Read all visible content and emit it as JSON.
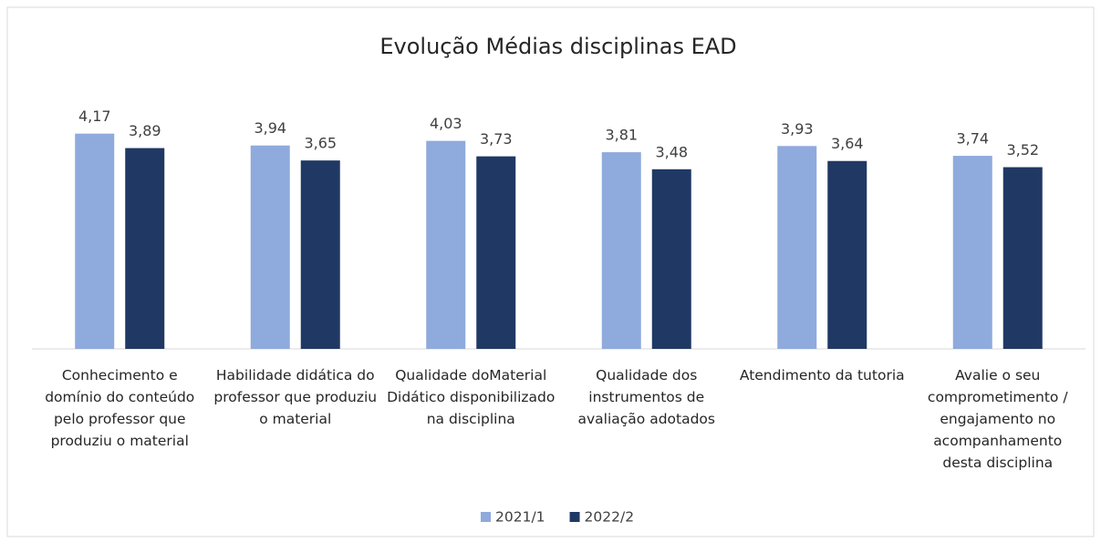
{
  "chart_data": {
    "type": "bar",
    "title": "Evolução Médias disciplinas EAD",
    "categories": [
      "Conhecimento e domínio do conteúdo pelo professor que produziu o material",
      "Habilidade didática do professor que produziu o material",
      "Qualidade doMaterial Didático disponibilizado na disciplina",
      "Qualidade dos instrumentos de avaliação adotados",
      "Atendimento da tutoria",
      "Avalie o seu comprometimento / engajamento no acompanhamento desta disciplina"
    ],
    "series": [
      {
        "name": "2021/1",
        "color": "#8faadc",
        "values": [
          4.17,
          3.94,
          4.03,
          3.81,
          3.93,
          3.74
        ],
        "value_labels": [
          "4,17",
          "3,94",
          "4,03",
          "3,81",
          "3,93",
          "3,74"
        ]
      },
      {
        "name": "2022/2",
        "color": "#203864",
        "values": [
          3.89,
          3.65,
          3.73,
          3.48,
          3.64,
          3.52
        ],
        "value_labels": [
          "3,89",
          "3,65",
          "3,73",
          "3,48",
          "3,64",
          "3,52"
        ]
      }
    ],
    "ylim": [
      0,
      4.5
    ],
    "legend": "bottom"
  }
}
